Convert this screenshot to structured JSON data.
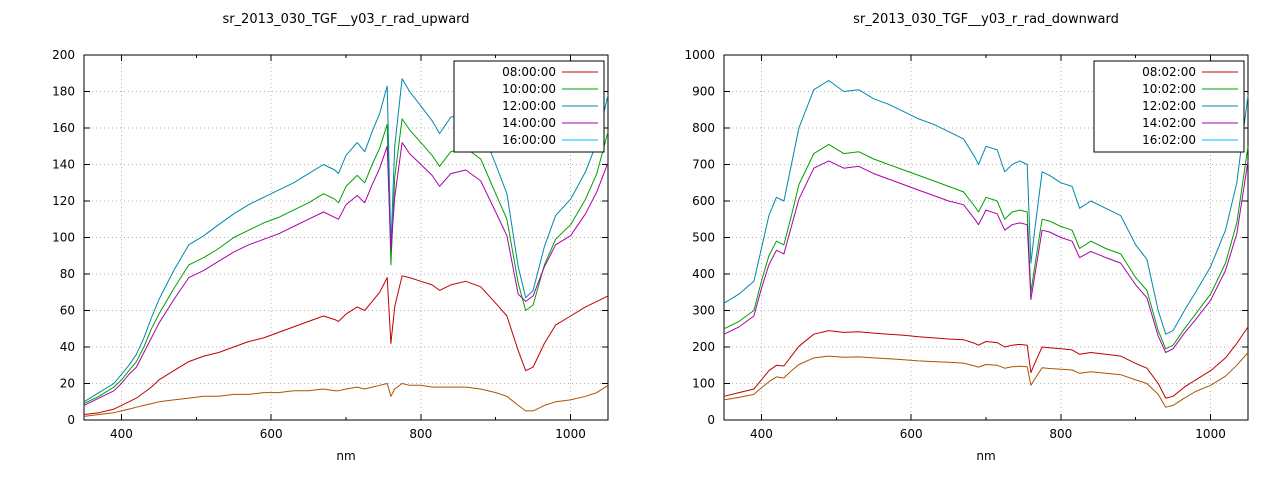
{
  "page": {
    "background": "#ffffff",
    "grid_color": "#b4b4b4",
    "axis_color": "#000000"
  },
  "chart_data": [
    {
      "type": "line",
      "title": "sr_2013_030_TGF__y03_r_rad_upward",
      "xlabel": "nm",
      "xlim": [
        350,
        1050
      ],
      "ylim": [
        0,
        200
      ],
      "ytick_step": 20,
      "xticks_labeled": [
        400,
        600,
        800,
        1000
      ],
      "xticks_minor": [
        500,
        700,
        900
      ],
      "grid": true,
      "legend_position": "top-right",
      "x": [
        350,
        370,
        390,
        400,
        410,
        420,
        430,
        440,
        450,
        470,
        490,
        510,
        530,
        550,
        570,
        590,
        610,
        630,
        650,
        670,
        685,
        690,
        700,
        715,
        725,
        735,
        745,
        755,
        760,
        765,
        775,
        785,
        800,
        815,
        825,
        840,
        860,
        880,
        900,
        915,
        930,
        940,
        950,
        965,
        980,
        1000,
        1020,
        1035,
        1050
      ],
      "series": [
        {
          "name": "08:00:00",
          "color": "#c00000",
          "values": [
            3,
            4,
            6,
            8,
            10,
            12,
            15,
            18,
            22,
            27,
            32,
            35,
            37,
            40,
            43,
            45,
            48,
            51,
            54,
            57,
            55,
            54,
            58,
            62,
            60,
            65,
            70,
            78,
            42,
            62,
            79,
            78,
            76,
            74,
            71,
            74,
            76,
            73,
            64,
            57,
            38,
            27,
            29,
            42,
            52,
            57,
            62,
            65,
            68
          ]
        },
        {
          "name": "10:00:00",
          "color": "#00a000",
          "values": [
            9,
            13,
            18,
            22,
            27,
            32,
            40,
            50,
            58,
            72,
            85,
            89,
            94,
            100,
            104,
            108,
            111,
            115,
            119,
            124,
            121,
            119,
            128,
            134,
            130,
            140,
            149,
            162,
            85,
            133,
            165,
            159,
            152,
            145,
            139,
            147,
            149,
            143,
            124,
            110,
            75,
            60,
            63,
            85,
            99,
            107,
            121,
            135,
            158
          ]
        },
        {
          "name": "12:00:00",
          "color": "#0088aa",
          "values": [
            10,
            15,
            20,
            25,
            30,
            36,
            45,
            56,
            66,
            82,
            96,
            101,
            107,
            113,
            118,
            122,
            126,
            130,
            135,
            140,
            137,
            135,
            145,
            152,
            147,
            158,
            168,
            183,
            95,
            150,
            187,
            180,
            172,
            164,
            157,
            166,
            168,
            161,
            140,
            124,
            84,
            67,
            71,
            95,
            112,
            121,
            136,
            152,
            178
          ]
        },
        {
          "name": "14:00:00",
          "color": "#aa00aa",
          "values": [
            8,
            12,
            16,
            20,
            25,
            29,
            37,
            45,
            53,
            66,
            78,
            82,
            87,
            92,
            96,
            99,
            102,
            106,
            110,
            114,
            111,
            110,
            118,
            123,
            119,
            129,
            138,
            150,
            93,
            122,
            152,
            146,
            140,
            134,
            128,
            135,
            137,
            131,
            114,
            101,
            69,
            65,
            68,
            84,
            96,
            101,
            113,
            125,
            141
          ]
        },
        {
          "name": "16:00:00",
          "color": "#aa5500",
          "legend_color": "#00bfff",
          "values": [
            2,
            3,
            4,
            5,
            6,
            7,
            8,
            9,
            10,
            11,
            12,
            13,
            13,
            14,
            14,
            15,
            15,
            16,
            16,
            17,
            16,
            16,
            17,
            18,
            17,
            18,
            19,
            20,
            13,
            17,
            20,
            19,
            19,
            18,
            18,
            18,
            18,
            17,
            15,
            13,
            8,
            5,
            5,
            8,
            10,
            11,
            13,
            15,
            19
          ]
        }
      ]
    },
    {
      "type": "line",
      "title": "sr_2013_030_TGF__y03_r_rad_downward",
      "xlabel": "nm",
      "xlim": [
        350,
        1050
      ],
      "ylim": [
        0,
        1000
      ],
      "ytick_step": 100,
      "xticks_labeled": [
        400,
        600,
        800,
        1000
      ],
      "xticks_minor": [
        500,
        700,
        900
      ],
      "grid": true,
      "legend_position": "top-right",
      "x": [
        350,
        370,
        390,
        400,
        410,
        420,
        430,
        440,
        450,
        470,
        490,
        510,
        530,
        550,
        570,
        590,
        610,
        630,
        650,
        670,
        685,
        690,
        700,
        715,
        725,
        735,
        745,
        755,
        760,
        765,
        775,
        785,
        800,
        815,
        825,
        840,
        860,
        880,
        900,
        915,
        930,
        940,
        950,
        965,
        980,
        1000,
        1020,
        1035,
        1050
      ],
      "series": [
        {
          "name": "08:02:00",
          "color": "#c00000",
          "values": [
            65,
            75,
            85,
            110,
            135,
            150,
            148,
            175,
            202,
            235,
            245,
            240,
            242,
            238,
            235,
            232,
            228,
            225,
            222,
            220,
            210,
            205,
            215,
            212,
            200,
            205,
            207,
            205,
            130,
            155,
            200,
            198,
            195,
            192,
            180,
            185,
            180,
            175,
            155,
            142,
            100,
            60,
            65,
            90,
            110,
            135,
            170,
            210,
            255
          ]
        },
        {
          "name": "10:02:00",
          "color": "#00a000",
          "values": [
            250,
            270,
            300,
            380,
            450,
            490,
            480,
            560,
            645,
            730,
            755,
            730,
            735,
            715,
            700,
            685,
            670,
            655,
            640,
            625,
            585,
            570,
            610,
            600,
            550,
            570,
            575,
            570,
            350,
            420,
            550,
            545,
            530,
            520,
            470,
            490,
            470,
            455,
            390,
            355,
            245,
            195,
            205,
            250,
            290,
            345,
            430,
            540,
            750
          ]
        },
        {
          "name": "12:02:00",
          "color": "#0088aa",
          "values": [
            320,
            345,
            380,
            470,
            560,
            610,
            600,
            700,
            800,
            905,
            930,
            900,
            905,
            880,
            865,
            845,
            825,
            810,
            790,
            770,
            720,
            700,
            750,
            740,
            680,
            700,
            710,
            700,
            430,
            520,
            680,
            670,
            650,
            640,
            580,
            600,
            580,
            560,
            480,
            440,
            300,
            235,
            245,
            300,
            350,
            420,
            520,
            650,
            890
          ]
        },
        {
          "name": "14:02:00",
          "color": "#aa00aa",
          "values": [
            235,
            255,
            285,
            360,
            425,
            465,
            455,
            530,
            605,
            690,
            710,
            690,
            695,
            675,
            660,
            645,
            630,
            615,
            600,
            590,
            550,
            535,
            575,
            565,
            520,
            535,
            540,
            535,
            330,
            395,
            520,
            515,
            500,
            490,
            445,
            462,
            445,
            430,
            370,
            335,
            230,
            185,
            195,
            238,
            275,
            328,
            410,
            510,
            710
          ]
        },
        {
          "name": "16:02:00",
          "color": "#aa5500",
          "legend_color": "#00bfff",
          "values": [
            55,
            62,
            70,
            88,
            105,
            118,
            115,
            135,
            152,
            170,
            175,
            172,
            173,
            170,
            168,
            165,
            162,
            160,
            158,
            156,
            148,
            145,
            152,
            150,
            142,
            146,
            147,
            146,
            95,
            112,
            143,
            141,
            139,
            137,
            128,
            132,
            128,
            124,
            110,
            100,
            70,
            35,
            40,
            60,
            78,
            95,
            120,
            150,
            185
          ]
        }
      ]
    }
  ]
}
